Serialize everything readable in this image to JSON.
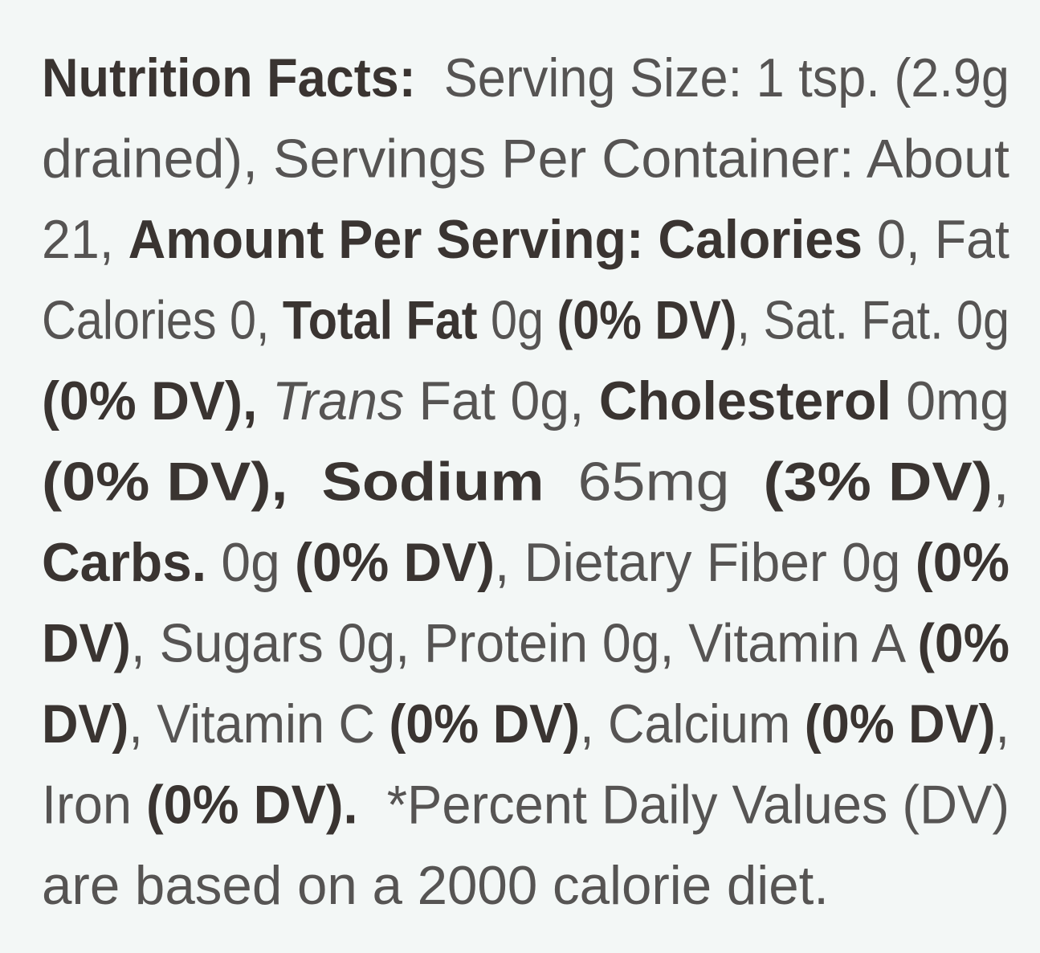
{
  "label": {
    "lines": [
      [
        {
          "text": "Nutrition Facts:",
          "style": "bold"
        },
        {
          "text": "  Serving Size: 1 tsp. (2.9g",
          "style": "normal"
        }
      ],
      [
        {
          "text": "drained), Servings Per Container: About",
          "style": "normal"
        }
      ],
      [
        {
          "text": "21, ",
          "style": "normal"
        },
        {
          "text": "Amount Per Serving: Calories",
          "style": "bold"
        },
        {
          "text": " 0, Fat",
          "style": "normal"
        }
      ],
      [
        {
          "text": "Calories 0, ",
          "style": "normal"
        },
        {
          "text": "Total Fat",
          "style": "bold"
        },
        {
          "text": " 0g ",
          "style": "normal"
        },
        {
          "text": "(0% DV)",
          "style": "bold"
        },
        {
          "text": ", Sat. Fat. 0g",
          "style": "normal"
        }
      ],
      [
        {
          "text": "(0% DV),",
          "style": "bold"
        },
        {
          "text": " ",
          "style": "normal"
        },
        {
          "text": "Trans",
          "style": "italic"
        },
        {
          "text": " Fat 0g, ",
          "style": "normal"
        },
        {
          "text": "Cholesterol",
          "style": "bold"
        },
        {
          "text": " 0mg",
          "style": "normal"
        }
      ],
      [
        {
          "text": "(0% DV),",
          "style": "bold"
        },
        {
          "text": "  ",
          "style": "normal"
        },
        {
          "text": "Sodium",
          "style": "bold"
        },
        {
          "text": "  65mg  ",
          "style": "normal"
        },
        {
          "text": "(3% DV)",
          "style": "bold"
        },
        {
          "text": ",",
          "style": "normal"
        }
      ],
      [
        {
          "text": "Carbs.",
          "style": "bold"
        },
        {
          "text": " 0g ",
          "style": "normal"
        },
        {
          "text": "(0% DV)",
          "style": "bold"
        },
        {
          "text": ", Dietary Fiber 0g ",
          "style": "normal"
        },
        {
          "text": "(0%",
          "style": "bold"
        }
      ],
      [
        {
          "text": "DV)",
          "style": "bold"
        },
        {
          "text": ", Sugars 0g, Protein 0g, Vitamin A ",
          "style": "normal"
        },
        {
          "text": "(0%",
          "style": "bold"
        }
      ],
      [
        {
          "text": "DV)",
          "style": "bold"
        },
        {
          "text": ", Vitamin C ",
          "style": "normal"
        },
        {
          "text": "(0% DV)",
          "style": "bold"
        },
        {
          "text": ", Calcium ",
          "style": "normal"
        },
        {
          "text": "(0% DV)",
          "style": "bold"
        },
        {
          "text": ",",
          "style": "normal"
        }
      ],
      [
        {
          "text": "Iron ",
          "style": "normal"
        },
        {
          "text": "(0% DV).",
          "style": "bold"
        },
        {
          "text": "  *Percent Daily Values (DV)",
          "style": "normal"
        }
      ],
      [
        {
          "text": "are based on a 2000 calorie diet.",
          "style": "normal"
        }
      ]
    ]
  }
}
